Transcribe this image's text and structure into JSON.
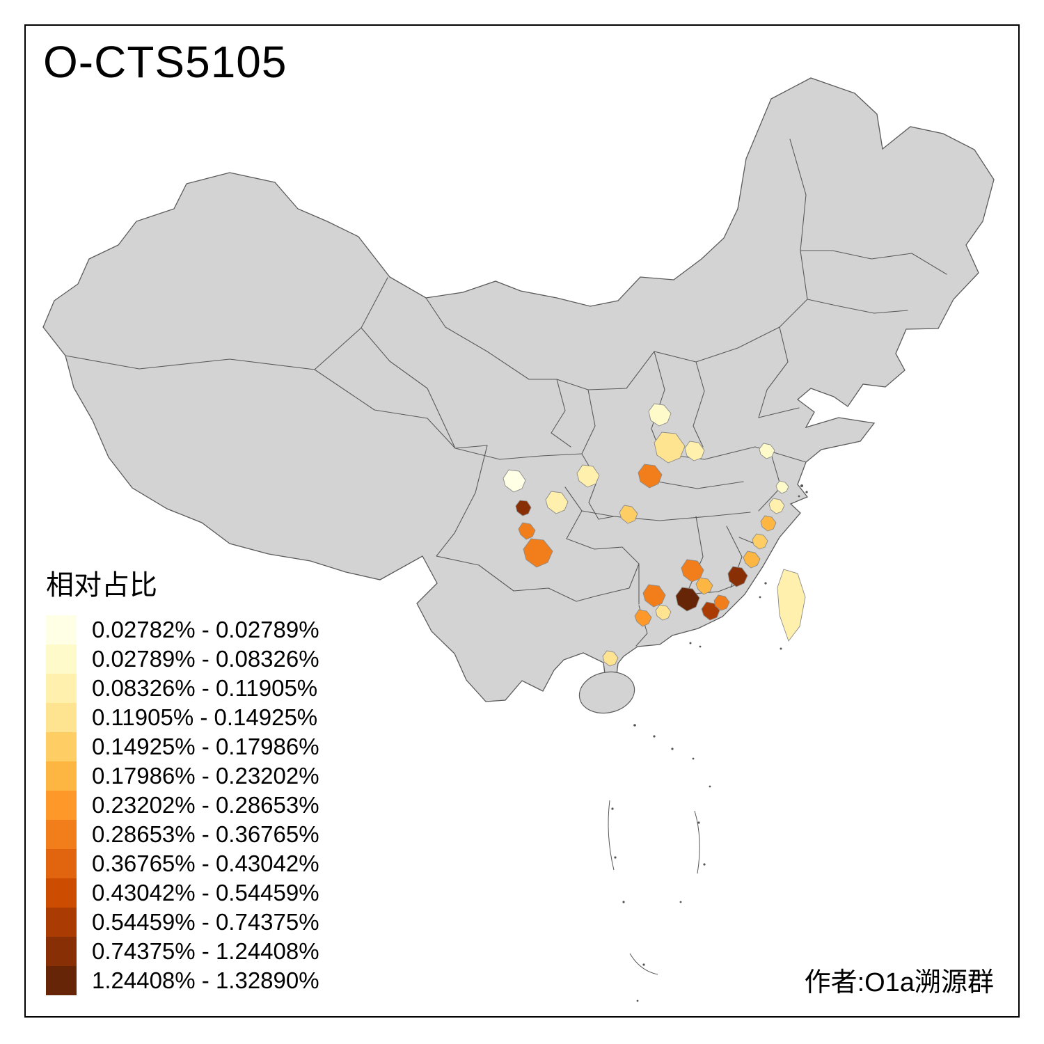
{
  "title": "O-CTS5105",
  "attribution": "作者:O1a溯源群",
  "legend": {
    "title": "相对占比",
    "classes": [
      {
        "label": "0.02782% - 0.02789%",
        "color": "#FFFFE5"
      },
      {
        "label": "0.02789% - 0.08326%",
        "color": "#FFFACA"
      },
      {
        "label": "0.08326% - 0.11905%",
        "color": "#FFF0AE"
      },
      {
        "label": "0.11905% - 0.14925%",
        "color": "#FEE391"
      },
      {
        "label": "0.14925% - 0.17986%",
        "color": "#FECE65"
      },
      {
        "label": "0.17986% - 0.23202%",
        "color": "#FEB642"
      },
      {
        "label": "0.23202% - 0.28653%",
        "color": "#FE9929"
      },
      {
        "label": "0.28653% - 0.36765%",
        "color": "#F27E1B"
      },
      {
        "label": "0.36765% - 0.43042%",
        "color": "#E1640E"
      },
      {
        "label": "0.43042% - 0.54459%",
        "color": "#CC4C02"
      },
      {
        "label": "0.54459% - 0.74375%",
        "color": "#AA3C03"
      },
      {
        "label": "0.74375% - 1.24408%",
        "color": "#882F05"
      },
      {
        "label": "1.24408% - 1.32890%",
        "color": "#662506"
      }
    ]
  },
  "map": {
    "name": "china-prefecture-choropleth",
    "base_fill": "#D3D3D3",
    "border_color": "#5A5A5A",
    "background": "#FFFFFF",
    "regions": [
      {
        "class": 1
      },
      {
        "class": 3
      },
      {
        "class": 2
      },
      {
        "class": 7
      },
      {
        "class": 2
      },
      {
        "class": 2
      },
      {
        "class": 0
      },
      {
        "class": 11
      },
      {
        "class": 7
      },
      {
        "class": 7
      },
      {
        "class": 4
      },
      {
        "class": 7
      },
      {
        "class": 5
      },
      {
        "class": 7
      },
      {
        "class": 6
      },
      {
        "class": 3
      },
      {
        "class": 12
      },
      {
        "class": 10
      },
      {
        "class": 7
      },
      {
        "class": 11
      },
      {
        "class": 5
      },
      {
        "class": 4
      },
      {
        "class": 5
      },
      {
        "class": 2
      },
      {
        "class": 1
      },
      {
        "class": 3
      },
      {
        "class": 2
      },
      {
        "class": 1
      }
    ]
  }
}
